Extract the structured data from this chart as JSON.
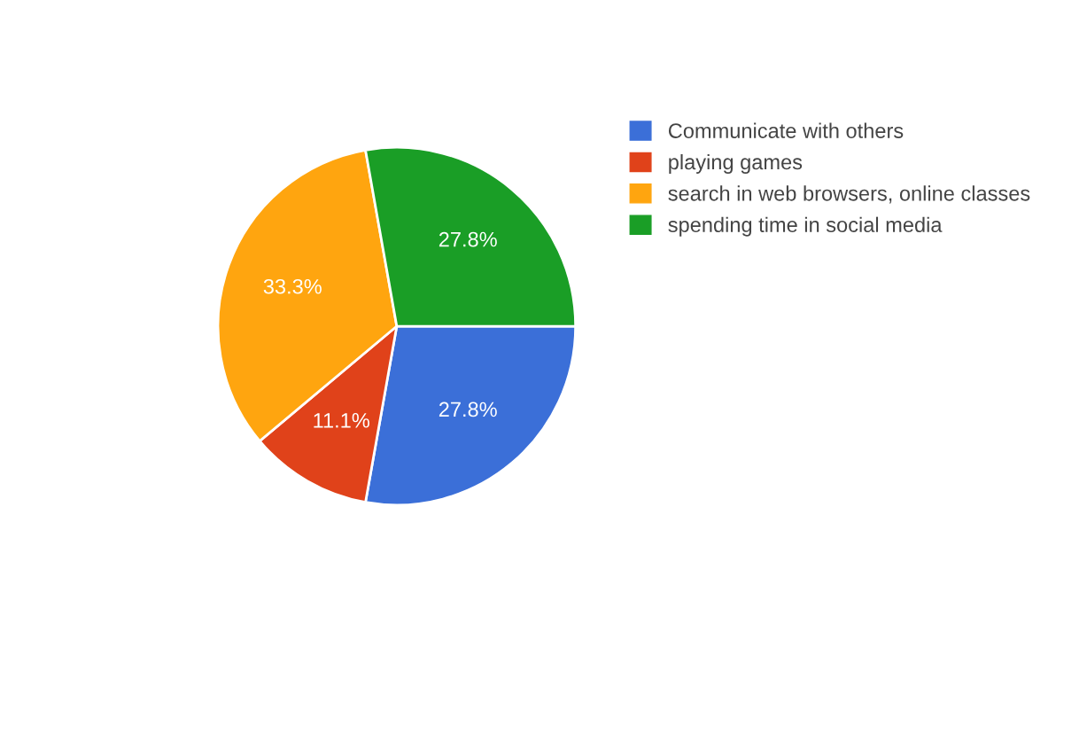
{
  "chart_data": {
    "type": "pie",
    "categories": [
      "Communicate with others",
      "playing games",
      "search in web browsers, online classes",
      "spending time in social media"
    ],
    "values": [
      27.8,
      11.1,
      33.3,
      27.8
    ],
    "value_labels": [
      "27.8%",
      "11.1%",
      "33.3%",
      "27.8%"
    ],
    "colors": [
      "#3b6fd8",
      "#e0421a",
      "#ffa50f",
      "#1a9e26"
    ],
    "legend": "right"
  }
}
